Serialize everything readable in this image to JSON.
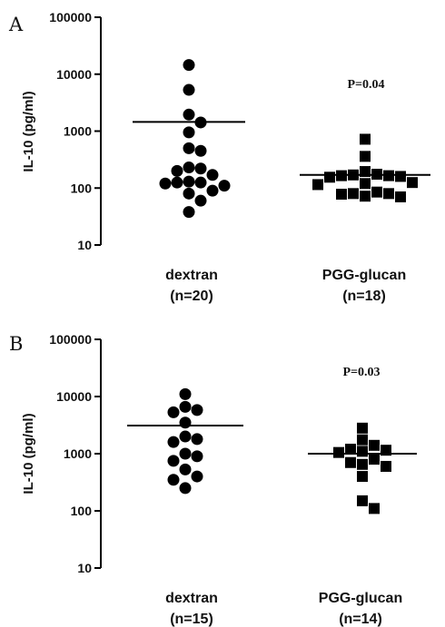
{
  "chart_data": [
    {
      "panel": "A",
      "type": "scatter",
      "ylabel": "IL-10 (pg/ml)",
      "yscale": "log",
      "ylim": [
        10,
        100000
      ],
      "yticks": [
        "10",
        "100",
        "1000",
        "10000",
        "100000"
      ],
      "annotation": "P=0.04",
      "groups": [
        {
          "label": "dextran",
          "n_label": "(n=20)",
          "marker": "circle",
          "mean": 1450,
          "values": [
            14500,
            5300,
            1950,
            1420,
            950,
            500,
            450,
            230,
            220,
            200,
            170,
            130,
            125,
            125,
            120,
            110,
            90,
            80,
            60,
            38
          ]
        },
        {
          "label": "PGG-glucan",
          "n_label": "(n=18)",
          "marker": "square",
          "mean": 170,
          "values": [
            720,
            360,
            195,
            175,
            170,
            165,
            165,
            160,
            155,
            125,
            120,
            115,
            85,
            80,
            80,
            78,
            72,
            70
          ]
        }
      ]
    },
    {
      "panel": "B",
      "type": "scatter",
      "ylabel": "IL-10 (pg/ml)",
      "yscale": "log",
      "ylim": [
        10,
        100000
      ],
      "yticks": [
        "10",
        "100",
        "1000",
        "10000",
        "100000"
      ],
      "annotation": "P=0.03",
      "groups": [
        {
          "label": "dextran",
          "n_label": "(n=15)",
          "marker": "circle",
          "mean": 3100,
          "values": [
            11000,
            6600,
            5800,
            5300,
            3500,
            2000,
            1800,
            1600,
            1000,
            900,
            750,
            530,
            400,
            350,
            250
          ]
        },
        {
          "label": "PGG-glucan",
          "n_label": "(n=14)",
          "marker": "square",
          "mean": 1000,
          "values": [
            2800,
            1750,
            1400,
            1200,
            1150,
            1100,
            1050,
            800,
            700,
            650,
            600,
            400,
            150,
            110
          ]
        }
      ]
    }
  ]
}
